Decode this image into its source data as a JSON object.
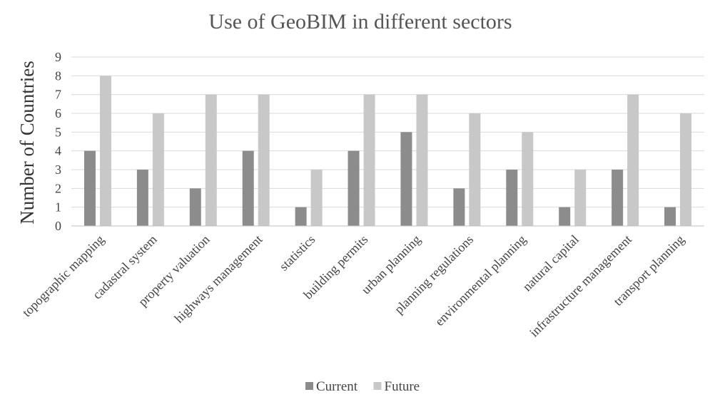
{
  "chart_data": {
    "type": "bar",
    "title": "Use of GeoBIM in different sectors",
    "xlabel": "",
    "ylabel": "Number of Countries",
    "ylim": [
      0,
      9
    ],
    "yticks": [
      0,
      1,
      2,
      3,
      4,
      5,
      6,
      7,
      8,
      9
    ],
    "grid": true,
    "legend_position": "bottom",
    "categories": [
      "topographic mapping",
      "cadastral system",
      "property valuation",
      "highways management",
      "statistics",
      "building permits",
      "urban planning",
      "planning regulations",
      "environmental planning",
      "natural capital",
      "infrastructure management",
      "transport planning"
    ],
    "series": [
      {
        "name": "Current",
        "color": "#8c8c8c",
        "values": [
          4,
          3,
          2,
          4,
          1,
          4,
          5,
          2,
          3,
          1,
          3,
          1
        ]
      },
      {
        "name": "Future",
        "color": "#c8c8c8",
        "values": [
          8,
          6,
          7,
          7,
          3,
          7,
          7,
          6,
          5,
          3,
          7,
          6
        ]
      }
    ]
  }
}
